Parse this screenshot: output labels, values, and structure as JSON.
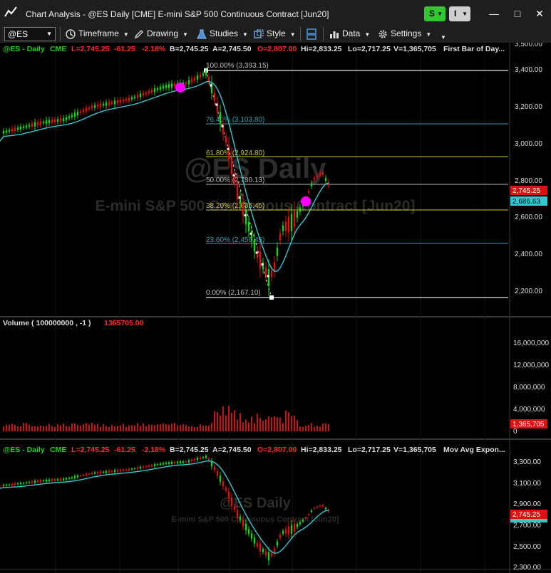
{
  "window": {
    "title": "Chart Analysis - @ES Daily [CME] E-mini S&P 500 Continuous Contract [Jun20]",
    "btn_s": "S",
    "btn_i": "I",
    "minimize": "—",
    "restore": "□",
    "close": "✕",
    "partial_top_right": "3,500.00"
  },
  "toolbar": {
    "symbol": "@ES",
    "timeframe": "Timeframe",
    "drawing": "Drawing",
    "studies": "Studies",
    "style": "Style",
    "data": "Data",
    "settings": "Settings"
  },
  "panel1": {
    "header": {
      "symbol": "@ES - Daily",
      "exchange": "CME",
      "last": "L=2,745.25",
      "change": "-61.25",
      "pct": "-2.18%",
      "bid": "B=2,745.25",
      "ask": "A=2,745.50",
      "open": "O=2,807.00",
      "high": "Hi=2,833.25",
      "low": "Lo=2,717.25",
      "volume": "V=1,365,705",
      "study": "First Bar of Day..."
    },
    "watermark_symbol": "@ES Daily",
    "watermark_desc": "E-mini S&P 500 Continuous Contract [Jun20]",
    "axis_ticks": [
      "3,400.00",
      "3,200.00",
      "3,000.00",
      "2,800.00",
      "2,600.00",
      "2,400.00",
      "2,200.00"
    ],
    "price_tag_last": "2,745.25",
    "price_tag_ma": "2,686.63",
    "fib_levels": [
      {
        "label": "100.00% (3,393.15)",
        "color": "#bdbdbd"
      },
      {
        "label": "76.40% (3,103.80)",
        "color": "#2aa6b0"
      },
      {
        "label": "61.80% (2,924.80)",
        "color": "#c8c832"
      },
      {
        "label": "50.00% (2,780.13)",
        "color": "#bdbdbd"
      },
      {
        "label": "38.20% (2,635.45)",
        "color": "#c8c832"
      },
      {
        "label": "23.60% (2,456.45)",
        "color": "#2aa6b0"
      },
      {
        "label": "0.00% (2,167.10)",
        "color": "#bdbdbd"
      }
    ]
  },
  "panel2": {
    "label": "Volume ( 100000000 , -1 )",
    "value": "1365705.00",
    "axis_ticks": [
      "16,000,000",
      "12,000,000",
      "8,000,000",
      "4,000,000",
      "0"
    ],
    "tag": "1,365,705"
  },
  "panel3": {
    "header": {
      "symbol": "@ES - Daily",
      "exchange": "CME",
      "last": "L=2,745.25",
      "change": "-61.25",
      "pct": "-2.18%",
      "bid": "B=2,745.25",
      "ask": "A=2,745.50",
      "open": "O=2,807.00",
      "high": "Hi=2,833.25",
      "low": "Lo=2,717.25",
      "volume": "V=1,365,705",
      "study": "Mov Avg Expon..."
    },
    "watermark_symbol": "@ES Daily",
    "watermark_desc": "E-mini S&P 500 Continuous Contract [Jun20]",
    "axis_ticks": [
      "3,300.00",
      "3,100.00",
      "2,900.00",
      "2,700.00",
      "2,500.00",
      "2,300.00"
    ],
    "price_tag_last": "2,745.25"
  },
  "colors": {
    "up": "#19d419",
    "down": "#e01010",
    "ma": "#32c8d2",
    "marker": "#ff00ff",
    "header_green": "#19d419",
    "header_red": "#ff2a2a"
  }
}
